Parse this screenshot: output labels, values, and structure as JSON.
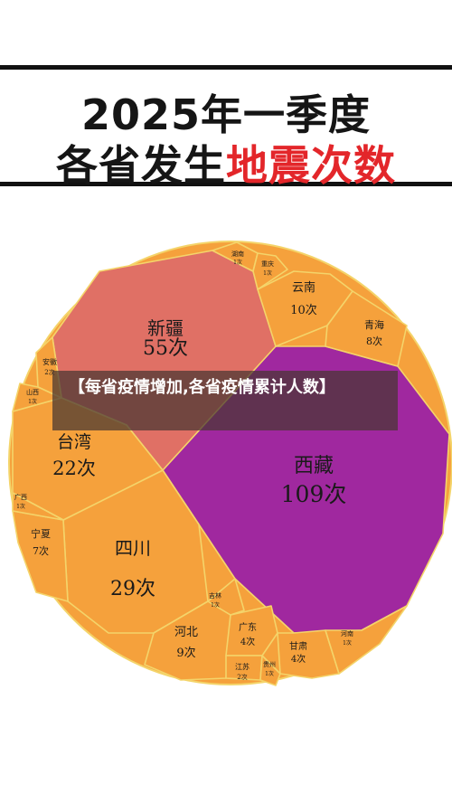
{
  "title": {
    "line1": "2025年一季度",
    "line2_black": "各省发生",
    "line2_red": "地震次数"
  },
  "banner": {
    "text": "【每省疫情增加,各省疫情累计人数】"
  },
  "colors": {
    "red_region": "#e07065",
    "orange_region": "#f5a13c",
    "purple_region": "#a0289f",
    "cell_border": "#f4d46a",
    "title_red": "#e3262a"
  },
  "chart_data": {
    "type": "voronoi_treemap",
    "title": "2025年一季度各省发生地震次数",
    "unit": "次",
    "cells": [
      {
        "name": "西藏",
        "value": 109,
        "label": "109次"
      },
      {
        "name": "新疆",
        "value": 55,
        "label": "55次"
      },
      {
        "name": "四川",
        "value": 29,
        "label": "29次"
      },
      {
        "name": "台湾",
        "value": 22,
        "label": "22次"
      },
      {
        "name": "云南",
        "value": 10,
        "label": "10次"
      },
      {
        "name": "河北",
        "value": 9,
        "label": "9次"
      },
      {
        "name": "青海",
        "value": 8,
        "label": "8次"
      },
      {
        "name": "宁夏",
        "value": 7,
        "label": "7次"
      },
      {
        "name": "广东",
        "value": 4,
        "label": "4次"
      },
      {
        "name": "甘肃",
        "value": 4,
        "label": "4次"
      },
      {
        "name": "安徽",
        "value": 2,
        "label": "2次"
      },
      {
        "name": "江苏",
        "value": 2,
        "label": "2次"
      },
      {
        "name": "湖南",
        "value": 1,
        "label": "1次"
      },
      {
        "name": "重庆",
        "value": 1,
        "label": "1次"
      },
      {
        "name": "山西",
        "value": 1,
        "label": "1次"
      },
      {
        "name": "广西",
        "value": 1,
        "label": "1次"
      },
      {
        "name": "吉林",
        "value": 1,
        "label": "1次"
      },
      {
        "name": "贵州",
        "value": 1,
        "label": "1次"
      },
      {
        "name": "河南",
        "value": 1,
        "label": "1次"
      }
    ]
  }
}
